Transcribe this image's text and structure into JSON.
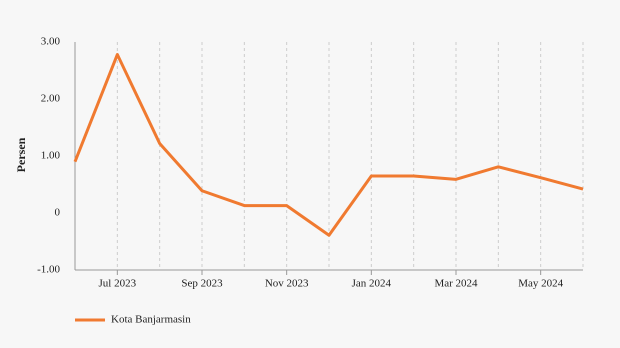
{
  "chart_data": {
    "type": "line",
    "y_label": "Persen",
    "categories": [
      null,
      "Jul 2023",
      null,
      "Sep 2023",
      null,
      "Nov 2023",
      null,
      "Jan 2024",
      null,
      "Mar 2024",
      null,
      "May 2024",
      null
    ],
    "series": [
      {
        "name": "Kota Banjarmasin",
        "color": "#f07a30",
        "values": [
          0.9,
          2.78,
          1.22,
          0.39,
          0.13,
          0.13,
          -0.39,
          0.65,
          0.65,
          0.59,
          0.81,
          0.62,
          0.42
        ]
      }
    ],
    "ylim": [
      -1,
      3
    ],
    "yticks": [
      {
        "value": -1,
        "label": "-1.00"
      },
      0,
      {
        "value": 1,
        "label": "1.00"
      },
      {
        "value": 2,
        "label": "2.00"
      },
      {
        "value": 3,
        "label": "3.00"
      }
    ],
    "grid": true,
    "legend": "bottom"
  }
}
